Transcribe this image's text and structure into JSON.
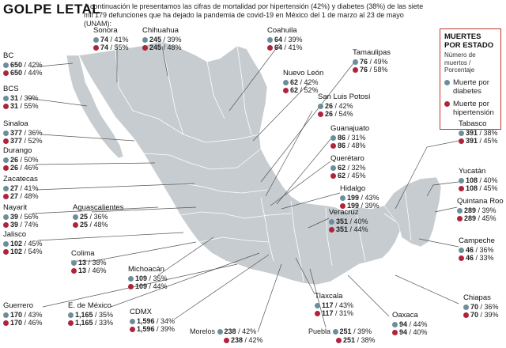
{
  "title": "GOLPE LETAL",
  "intro": "A continuación le presentamos las cifras de mortalidad por hipertensión (42%) y diabetes (38%) de las siete mil 179 defunciones que ha dejado la pandemia de covid-19 en México del 1 de marzo al 23 de mayo (UNAM):",
  "colors": {
    "diabetes": "#6b8e9a",
    "hipertension": "#b0243a",
    "map_fill": "#c7ccd0",
    "line": "#555555"
  },
  "legend": {
    "title": "MUERTES POR ESTADO",
    "subtitle": "Número de muertos / Porcentaje",
    "diabetes": "Muerte por diabetes",
    "hipertension": "Muerte por hipertensión"
  },
  "states": [
    {
      "name": "BC",
      "d": "650",
      "dp": "42%",
      "h": "650",
      "hp": "44%"
    },
    {
      "name": "Sonora",
      "d": "74",
      "dp": "41%",
      "h": "74",
      "hp": "55%"
    },
    {
      "name": "Chihuahua",
      "d": "245",
      "dp": "39%",
      "h": "245",
      "hp": "48%"
    },
    {
      "name": "Coahuila",
      "d": "64",
      "dp": "39%",
      "h": "64",
      "hp": "41%"
    },
    {
      "name": "Tamaulipas",
      "d": "76",
      "dp": "49%",
      "h": "76",
      "hp": "58%"
    },
    {
      "name": "BCS",
      "d": "31",
      "dp": "39%",
      "h": "31",
      "hp": "55%"
    },
    {
      "name": "Nuevo León",
      "d": "62",
      "dp": "42%",
      "h": "62",
      "hp": "52%"
    },
    {
      "name": "San Luis Potosí",
      "d": "26",
      "dp": "42%",
      "h": "26",
      "hp": "54%"
    },
    {
      "name": "Sinaloa",
      "d": "377",
      "dp": "36%",
      "h": "377",
      "hp": "52%"
    },
    {
      "name": "Guanajuato",
      "d": "86",
      "dp": "31%",
      "h": "86",
      "hp": "48%"
    },
    {
      "name": "Durango",
      "d": "26",
      "dp": "50%",
      "h": "26",
      "hp": "46%"
    },
    {
      "name": "Tabasco",
      "d": "391",
      "dp": "38%",
      "h": "391",
      "hp": "45%"
    },
    {
      "name": "Querétaro",
      "d": "62",
      "dp": "32%",
      "h": "62",
      "hp": "45%"
    },
    {
      "name": "Zacatecas",
      "d": "27",
      "dp": "41%",
      "h": "27",
      "hp": "48%"
    },
    {
      "name": "Yucatán",
      "d": "108",
      "dp": "40%",
      "h": "108",
      "hp": "45%"
    },
    {
      "name": "Hidalgo",
      "d": "199",
      "dp": "43%",
      "h": "199",
      "hp": "39%"
    },
    {
      "name": "Nayarit",
      "d": "39",
      "dp": "56%",
      "h": "39",
      "hp": "74%"
    },
    {
      "name": "Aguascalientes",
      "d": "25",
      "dp": "36%",
      "h": "25",
      "hp": "48%"
    },
    {
      "name": "Veracruz",
      "d": "351",
      "dp": "40%",
      "h": "351",
      "hp": "44%"
    },
    {
      "name": "Quintana Roo",
      "d": "289",
      "dp": "39%",
      "h": "289",
      "hp": "45%"
    },
    {
      "name": "Jalisco",
      "d": "102",
      "dp": "45%",
      "h": "102",
      "hp": "54%"
    },
    {
      "name": "Colima",
      "d": "13",
      "dp": "38%",
      "h": "13",
      "hp": "46%"
    },
    {
      "name": "Campeche",
      "d": "46",
      "dp": "36%",
      "h": "46",
      "hp": "33%"
    },
    {
      "name": "Michoacán",
      "d": "109",
      "dp": "35%",
      "h": "109",
      "hp": "44%"
    },
    {
      "name": "Chiapas",
      "d": "70",
      "dp": "36%",
      "h": "70",
      "hp": "39%"
    },
    {
      "name": "Tlaxcala",
      "d": "117",
      "dp": "43%",
      "h": "117",
      "hp": "31%"
    },
    {
      "name": "Guerrero",
      "d": "170",
      "dp": "43%",
      "h": "170",
      "hp": "46%"
    },
    {
      "name": "E. de México",
      "d": "1,165",
      "dp": "35%",
      "h": "1,165",
      "hp": "33%"
    },
    {
      "name": "CDMX",
      "d": "1,596",
      "dp": "34%",
      "h": "1,596",
      "hp": "39%"
    },
    {
      "name": "Oaxaca",
      "d": "94",
      "dp": "44%",
      "h": "94",
      "hp": "40%"
    },
    {
      "name": "Morelos",
      "d": "238",
      "dp": "42%",
      "h": "238",
      "hp": "42%"
    },
    {
      "name": "Puebla",
      "d": "251",
      "dp": "39%",
      "h": "251",
      "hp": "38%"
    }
  ]
}
